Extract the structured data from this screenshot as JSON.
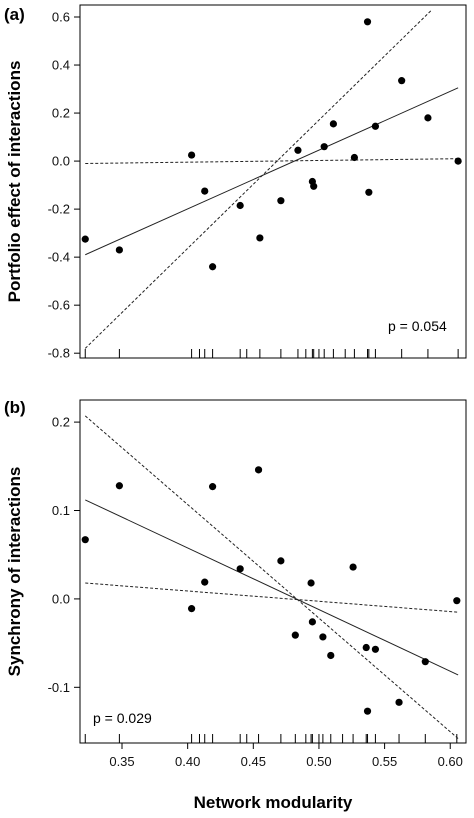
{
  "chart_data": [
    {
      "type": "scatter",
      "panel_label": "(a)",
      "title": "",
      "xlabel": "",
      "ylabel": "Portfolio effect of interactions",
      "xlim": [
        0.318,
        0.612
      ],
      "ylim": [
        -0.82,
        0.65
      ],
      "yticks": [
        -0.8,
        -0.6,
        -0.4,
        -0.2,
        0.0,
        0.2,
        0.4,
        0.6
      ],
      "ytick_labels": [
        "-0.8",
        "-0.6",
        "-0.4",
        "-0.2",
        "0.0",
        "0.2",
        "0.4",
        "0.6"
      ],
      "annotation": "p = 0.054",
      "points": [
        {
          "x": 0.322,
          "y": -0.325
        },
        {
          "x": 0.348,
          "y": -0.37
        },
        {
          "x": 0.403,
          "y": 0.025
        },
        {
          "x": 0.413,
          "y": -0.125
        },
        {
          "x": 0.419,
          "y": -0.44
        },
        {
          "x": 0.44,
          "y": -0.185
        },
        {
          "x": 0.455,
          "y": -0.32
        },
        {
          "x": 0.471,
          "y": -0.165
        },
        {
          "x": 0.484,
          "y": 0.045
        },
        {
          "x": 0.495,
          "y": -0.085
        },
        {
          "x": 0.496,
          "y": -0.105
        },
        {
          "x": 0.504,
          "y": 0.06
        },
        {
          "x": 0.511,
          "y": 0.155
        },
        {
          "x": 0.527,
          "y": 0.015
        },
        {
          "x": 0.537,
          "y": 0.58
        },
        {
          "x": 0.538,
          "y": -0.13
        },
        {
          "x": 0.543,
          "y": 0.145
        },
        {
          "x": 0.563,
          "y": 0.335
        },
        {
          "x": 0.583,
          "y": 0.18
        },
        {
          "x": 0.606,
          "y": 0.0
        }
      ],
      "lines": [
        {
          "style": "solid",
          "x1": 0.322,
          "y1": -0.39,
          "x2": 0.606,
          "y2": 0.305
        },
        {
          "style": "dashed",
          "x1": 0.322,
          "y1": -0.78,
          "x2": 0.586,
          "y2": 0.63
        },
        {
          "style": "dashed",
          "x1": 0.322,
          "y1": -0.01,
          "x2": 0.606,
          "y2": 0.01
        }
      ],
      "rug": [
        0.322,
        0.348,
        0.403,
        0.409,
        0.413,
        0.419,
        0.44,
        0.445,
        0.455,
        0.471,
        0.484,
        0.49,
        0.495,
        0.496,
        0.5,
        0.504,
        0.511,
        0.52,
        0.527,
        0.537,
        0.538,
        0.543,
        0.563,
        0.583,
        0.606
      ]
    },
    {
      "type": "scatter",
      "panel_label": "(b)",
      "title": "",
      "xlabel": "Network modularity",
      "ylabel": "Synchrony of interactions",
      "xlim": [
        0.318,
        0.612
      ],
      "ylim": [
        -0.163,
        0.225
      ],
      "yticks": [
        -0.1,
        0.0,
        0.1,
        0.2
      ],
      "ytick_labels": [
        "-0.1",
        "0.0",
        "0.1",
        "0.2"
      ],
      "xticks": [
        0.35,
        0.4,
        0.45,
        0.5,
        0.55,
        0.6
      ],
      "xtick_labels": [
        "0.35",
        "0.40",
        "0.45",
        "0.50",
        "0.55",
        "0.60"
      ],
      "annotation": "p = 0.029",
      "points": [
        {
          "x": 0.322,
          "y": 0.067
        },
        {
          "x": 0.348,
          "y": 0.128
        },
        {
          "x": 0.403,
          "y": -0.011
        },
        {
          "x": 0.413,
          "y": 0.019
        },
        {
          "x": 0.419,
          "y": 0.127
        },
        {
          "x": 0.44,
          "y": 0.034
        },
        {
          "x": 0.454,
          "y": 0.146
        },
        {
          "x": 0.471,
          "y": 0.043
        },
        {
          "x": 0.482,
          "y": -0.041
        },
        {
          "x": 0.494,
          "y": 0.018
        },
        {
          "x": 0.495,
          "y": -0.026
        },
        {
          "x": 0.503,
          "y": -0.043
        },
        {
          "x": 0.509,
          "y": -0.064
        },
        {
          "x": 0.526,
          "y": 0.036
        },
        {
          "x": 0.536,
          "y": -0.055
        },
        {
          "x": 0.537,
          "y": -0.127
        },
        {
          "x": 0.543,
          "y": -0.057
        },
        {
          "x": 0.561,
          "y": -0.117
        },
        {
          "x": 0.581,
          "y": -0.071
        },
        {
          "x": 0.605,
          "y": -0.002
        }
      ],
      "lines": [
        {
          "style": "solid",
          "x1": 0.322,
          "y1": 0.112,
          "x2": 0.606,
          "y2": -0.086
        },
        {
          "style": "dashed",
          "x1": 0.322,
          "y1": 0.207,
          "x2": 0.606,
          "y2": -0.158
        },
        {
          "style": "dashed",
          "x1": 0.322,
          "y1": 0.018,
          "x2": 0.606,
          "y2": -0.015
        }
      ],
      "rug": [
        0.322,
        0.348,
        0.403,
        0.409,
        0.413,
        0.419,
        0.44,
        0.445,
        0.454,
        0.471,
        0.482,
        0.49,
        0.494,
        0.495,
        0.5,
        0.503,
        0.509,
        0.518,
        0.526,
        0.536,
        0.537,
        0.543,
        0.561,
        0.581,
        0.605
      ]
    }
  ]
}
